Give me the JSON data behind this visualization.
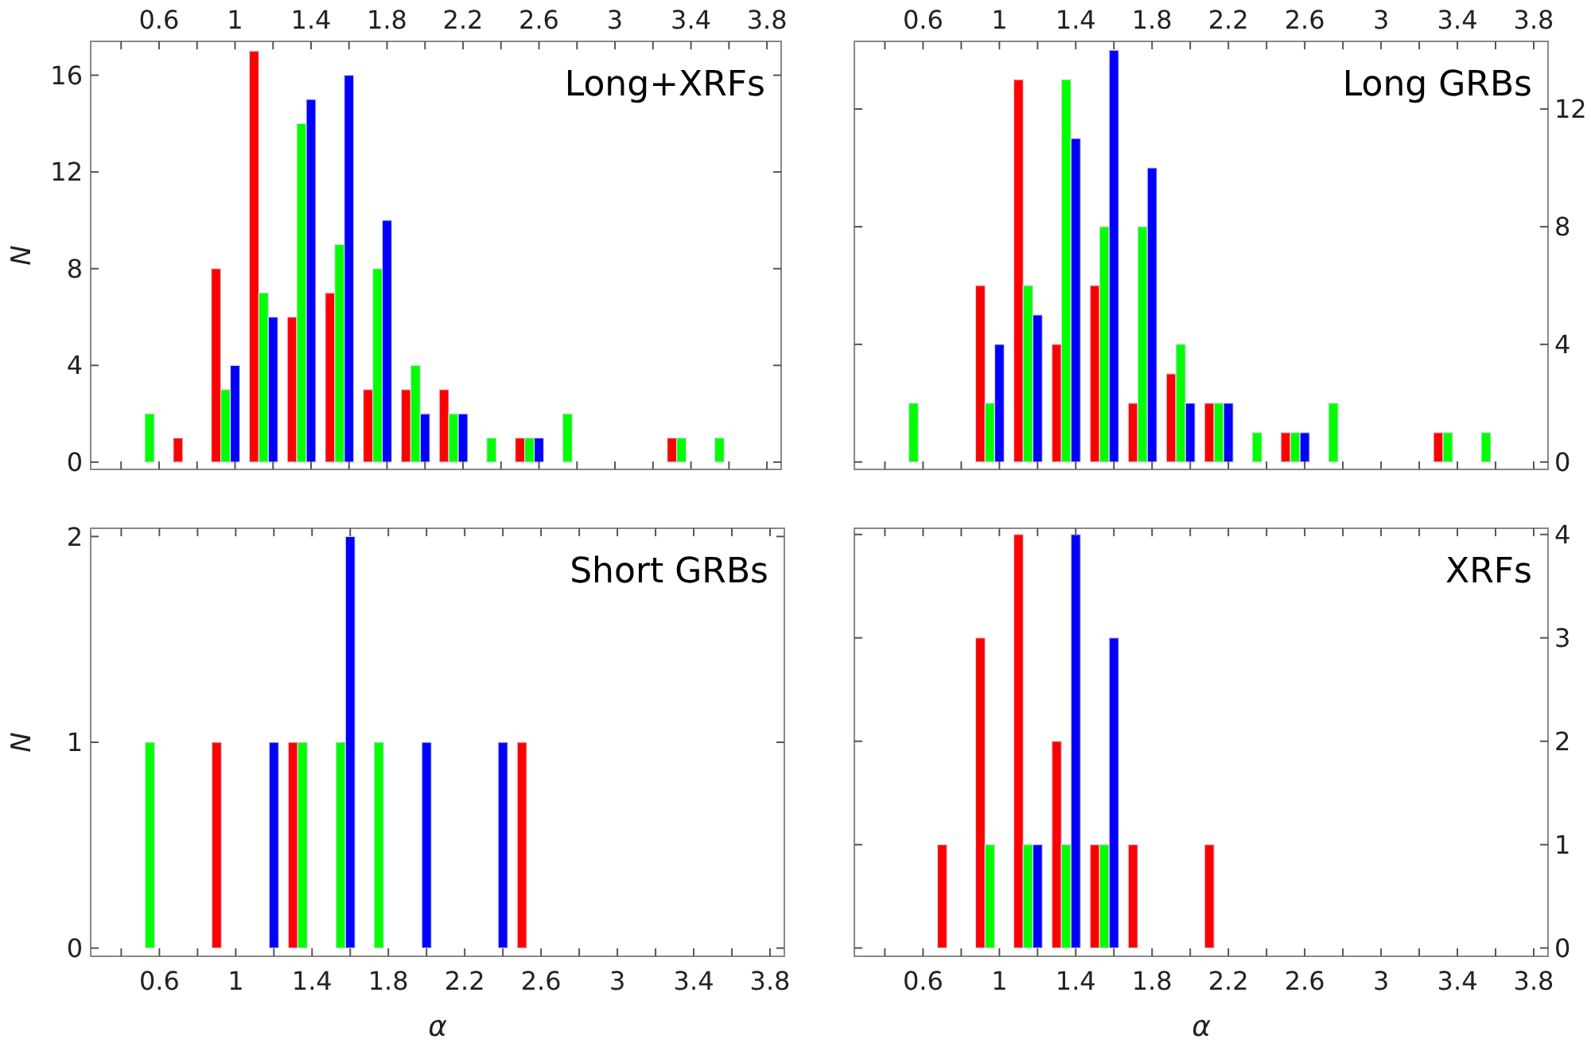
{
  "chart_data": [
    {
      "type": "bar",
      "title": "Long+XRFs",
      "ylabel": "N",
      "xlim": [
        0.24,
        3.875
      ],
      "x2lim": [
        0.24,
        3.875
      ],
      "x2ticks": [
        {
          "value": 0.4,
          "label": null
        },
        0.6,
        {
          "value": 0.8,
          "label": null
        },
        1,
        {
          "value": 1.2,
          "label": null
        },
        1.4,
        {
          "value": 1.6,
          "label": null
        },
        1.8,
        {
          "value": 2,
          "label": null
        },
        2.2,
        {
          "value": 2.4,
          "label": null
        },
        2.6,
        {
          "value": 2.8,
          "label": null
        },
        3,
        {
          "value": 3.2,
          "label": null
        },
        3.4,
        {
          "value": 3.6,
          "label": null
        },
        3.8
      ],
      "ylim": [
        -0.3,
        17.4
      ],
      "yticks": [
        0,
        4,
        8,
        12,
        16
      ],
      "x": [
        0.35,
        0.55,
        0.75,
        0.95,
        1.15,
        1.35,
        1.55,
        1.75,
        1.95,
        2.15,
        2.35,
        2.55,
        2.75,
        2.95,
        3.15,
        3.35,
        3.55,
        3.75
      ],
      "series": [
        {
          "color": "#ff0000",
          "values": [
            0,
            0,
            1,
            8,
            17,
            6,
            7,
            3,
            3,
            3,
            0,
            1,
            0,
            0,
            0,
            1,
            0,
            0
          ]
        },
        {
          "color": "#00ff00",
          "values": [
            0,
            2,
            0,
            3,
            7,
            14,
            9,
            8,
            4,
            2,
            1,
            1,
            2,
            0,
            0,
            1,
            1,
            0
          ]
        },
        {
          "color": "#0000ff",
          "values": [
            0,
            0,
            0,
            4,
            6,
            15,
            16,
            10,
            2,
            2,
            0,
            1,
            0,
            0,
            0,
            0,
            0,
            0
          ]
        }
      ]
    },
    {
      "type": "bar",
      "title": "Long GRBs",
      "xlim": [
        0.24,
        3.875
      ],
      "x2lim": [
        0.24,
        3.875
      ],
      "x2ticks": [
        {
          "value": 0.4,
          "label": null
        },
        0.6,
        {
          "value": 0.8,
          "label": null
        },
        1,
        {
          "value": 1.2,
          "label": null
        },
        1.4,
        {
          "value": 1.6,
          "label": null
        },
        1.8,
        {
          "value": 2,
          "label": null
        },
        2.2,
        {
          "value": 2.4,
          "label": null
        },
        2.6,
        {
          "value": 2.8,
          "label": null
        },
        3,
        {
          "value": 3.2,
          "label": null
        },
        3.4,
        {
          "value": 3.6,
          "label": null
        },
        3.8
      ],
      "y2lim": [
        -0.25,
        14.3
      ],
      "y2ticks": [
        0,
        4,
        8,
        12
      ],
      "x": [
        0.35,
        0.55,
        0.75,
        0.95,
        1.15,
        1.35,
        1.55,
        1.75,
        1.95,
        2.15,
        2.35,
        2.55,
        2.75,
        2.95,
        3.15,
        3.35,
        3.55,
        3.75
      ],
      "series": [
        {
          "color": "#ff0000",
          "axis": "y2",
          "values": [
            0,
            0,
            0,
            6,
            13,
            4,
            6,
            2,
            3,
            2,
            0,
            1,
            0,
            0,
            0,
            1,
            0,
            0
          ]
        },
        {
          "color": "#00ff00",
          "axis": "y2",
          "values": [
            0,
            2,
            0,
            2,
            6,
            13,
            8,
            8,
            4,
            2,
            1,
            1,
            2,
            0,
            0,
            1,
            1,
            0
          ]
        },
        {
          "color": "#0000ff",
          "axis": "y2",
          "values": [
            0,
            0,
            0,
            4,
            5,
            11,
            14,
            10,
            2,
            2,
            0,
            1,
            0,
            0,
            0,
            0,
            0,
            0
          ]
        }
      ]
    },
    {
      "type": "bar",
      "title": "Short GRBs",
      "ylabel": "N",
      "xlabel": "α",
      "xlim": [
        0.24,
        3.875
      ],
      "xticks": [
        {
          "value": 0.4,
          "label": null
        },
        0.6,
        {
          "value": 0.8,
          "label": null
        },
        1,
        {
          "value": 1.2,
          "label": null
        },
        1.4,
        {
          "value": 1.6,
          "label": null
        },
        1.8,
        {
          "value": 2,
          "label": null
        },
        2.2,
        {
          "value": 2.4,
          "label": null
        },
        2.6,
        {
          "value": 2.8,
          "label": null
        },
        3,
        {
          "value": 3.2,
          "label": null
        },
        3.4,
        {
          "value": 3.6,
          "label": null
        },
        3.8
      ],
      "ylim": [
        -0.04,
        2.04
      ],
      "yticks": [
        0,
        1,
        2
      ],
      "x": [
        0.35,
        0.55,
        0.75,
        0.95,
        1.15,
        1.35,
        1.55,
        1.75,
        1.95,
        2.15,
        2.35,
        2.55,
        2.75,
        2.95,
        3.15,
        3.35,
        3.55,
        3.75
      ],
      "series": [
        {
          "color": "#ff0000",
          "values": [
            0,
            0,
            0,
            1,
            0,
            1,
            0,
            0,
            0,
            0,
            0,
            1,
            0,
            0,
            0,
            0,
            0,
            0
          ]
        },
        {
          "color": "#00ff00",
          "values": [
            0,
            1,
            0,
            0,
            0,
            1,
            1,
            1,
            0,
            0,
            0,
            0,
            0,
            0,
            0,
            0,
            0,
            0
          ]
        },
        {
          "color": "#0000ff",
          "values": [
            0,
            0,
            0,
            0,
            1,
            0,
            2,
            0,
            1,
            0,
            1,
            0,
            0,
            0,
            0,
            0,
            0,
            0
          ]
        }
      ]
    },
    {
      "type": "bar",
      "title": "XRFs",
      "xlabel": "α",
      "xlim": [
        0.24,
        3.875
      ],
      "xticks": [
        {
          "value": 0.4,
          "label": null
        },
        0.6,
        {
          "value": 0.8,
          "label": null
        },
        1,
        {
          "value": 1.2,
          "label": null
        },
        1.4,
        {
          "value": 1.6,
          "label": null
        },
        1.8,
        {
          "value": 2,
          "label": null
        },
        2.2,
        {
          "value": 2.4,
          "label": null
        },
        2.6,
        {
          "value": 2.8,
          "label": null
        },
        3,
        {
          "value": 3.2,
          "label": null
        },
        3.4,
        {
          "value": 3.6,
          "label": null
        },
        3.8
      ],
      "y2lim": [
        -0.08,
        4.06
      ],
      "y2ticks": [
        0,
        1,
        2,
        3,
        4
      ],
      "x": [
        0.35,
        0.55,
        0.75,
        0.95,
        1.15,
        1.35,
        1.55,
        1.75,
        1.95,
        2.15,
        2.35,
        2.55,
        2.75,
        2.95,
        3.15,
        3.35,
        3.55,
        3.75
      ],
      "series": [
        {
          "color": "#ff0000",
          "axis": "y2",
          "values": [
            0,
            0,
            1,
            3,
            4,
            2,
            1,
            1,
            0,
            1,
            0,
            0,
            0,
            0,
            0,
            0,
            0,
            0
          ]
        },
        {
          "color": "#00ff00",
          "axis": "y2",
          "values": [
            0,
            0,
            0,
            1,
            1,
            1,
            1,
            0,
            0,
            0,
            0,
            0,
            0,
            0,
            0,
            0,
            0,
            0
          ]
        },
        {
          "color": "#0000ff",
          "axis": "y2",
          "values": [
            0,
            0,
            0,
            0,
            1,
            4,
            3,
            0,
            0,
            0,
            0,
            0,
            0,
            0,
            0,
            0,
            0,
            0
          ]
        }
      ]
    }
  ]
}
